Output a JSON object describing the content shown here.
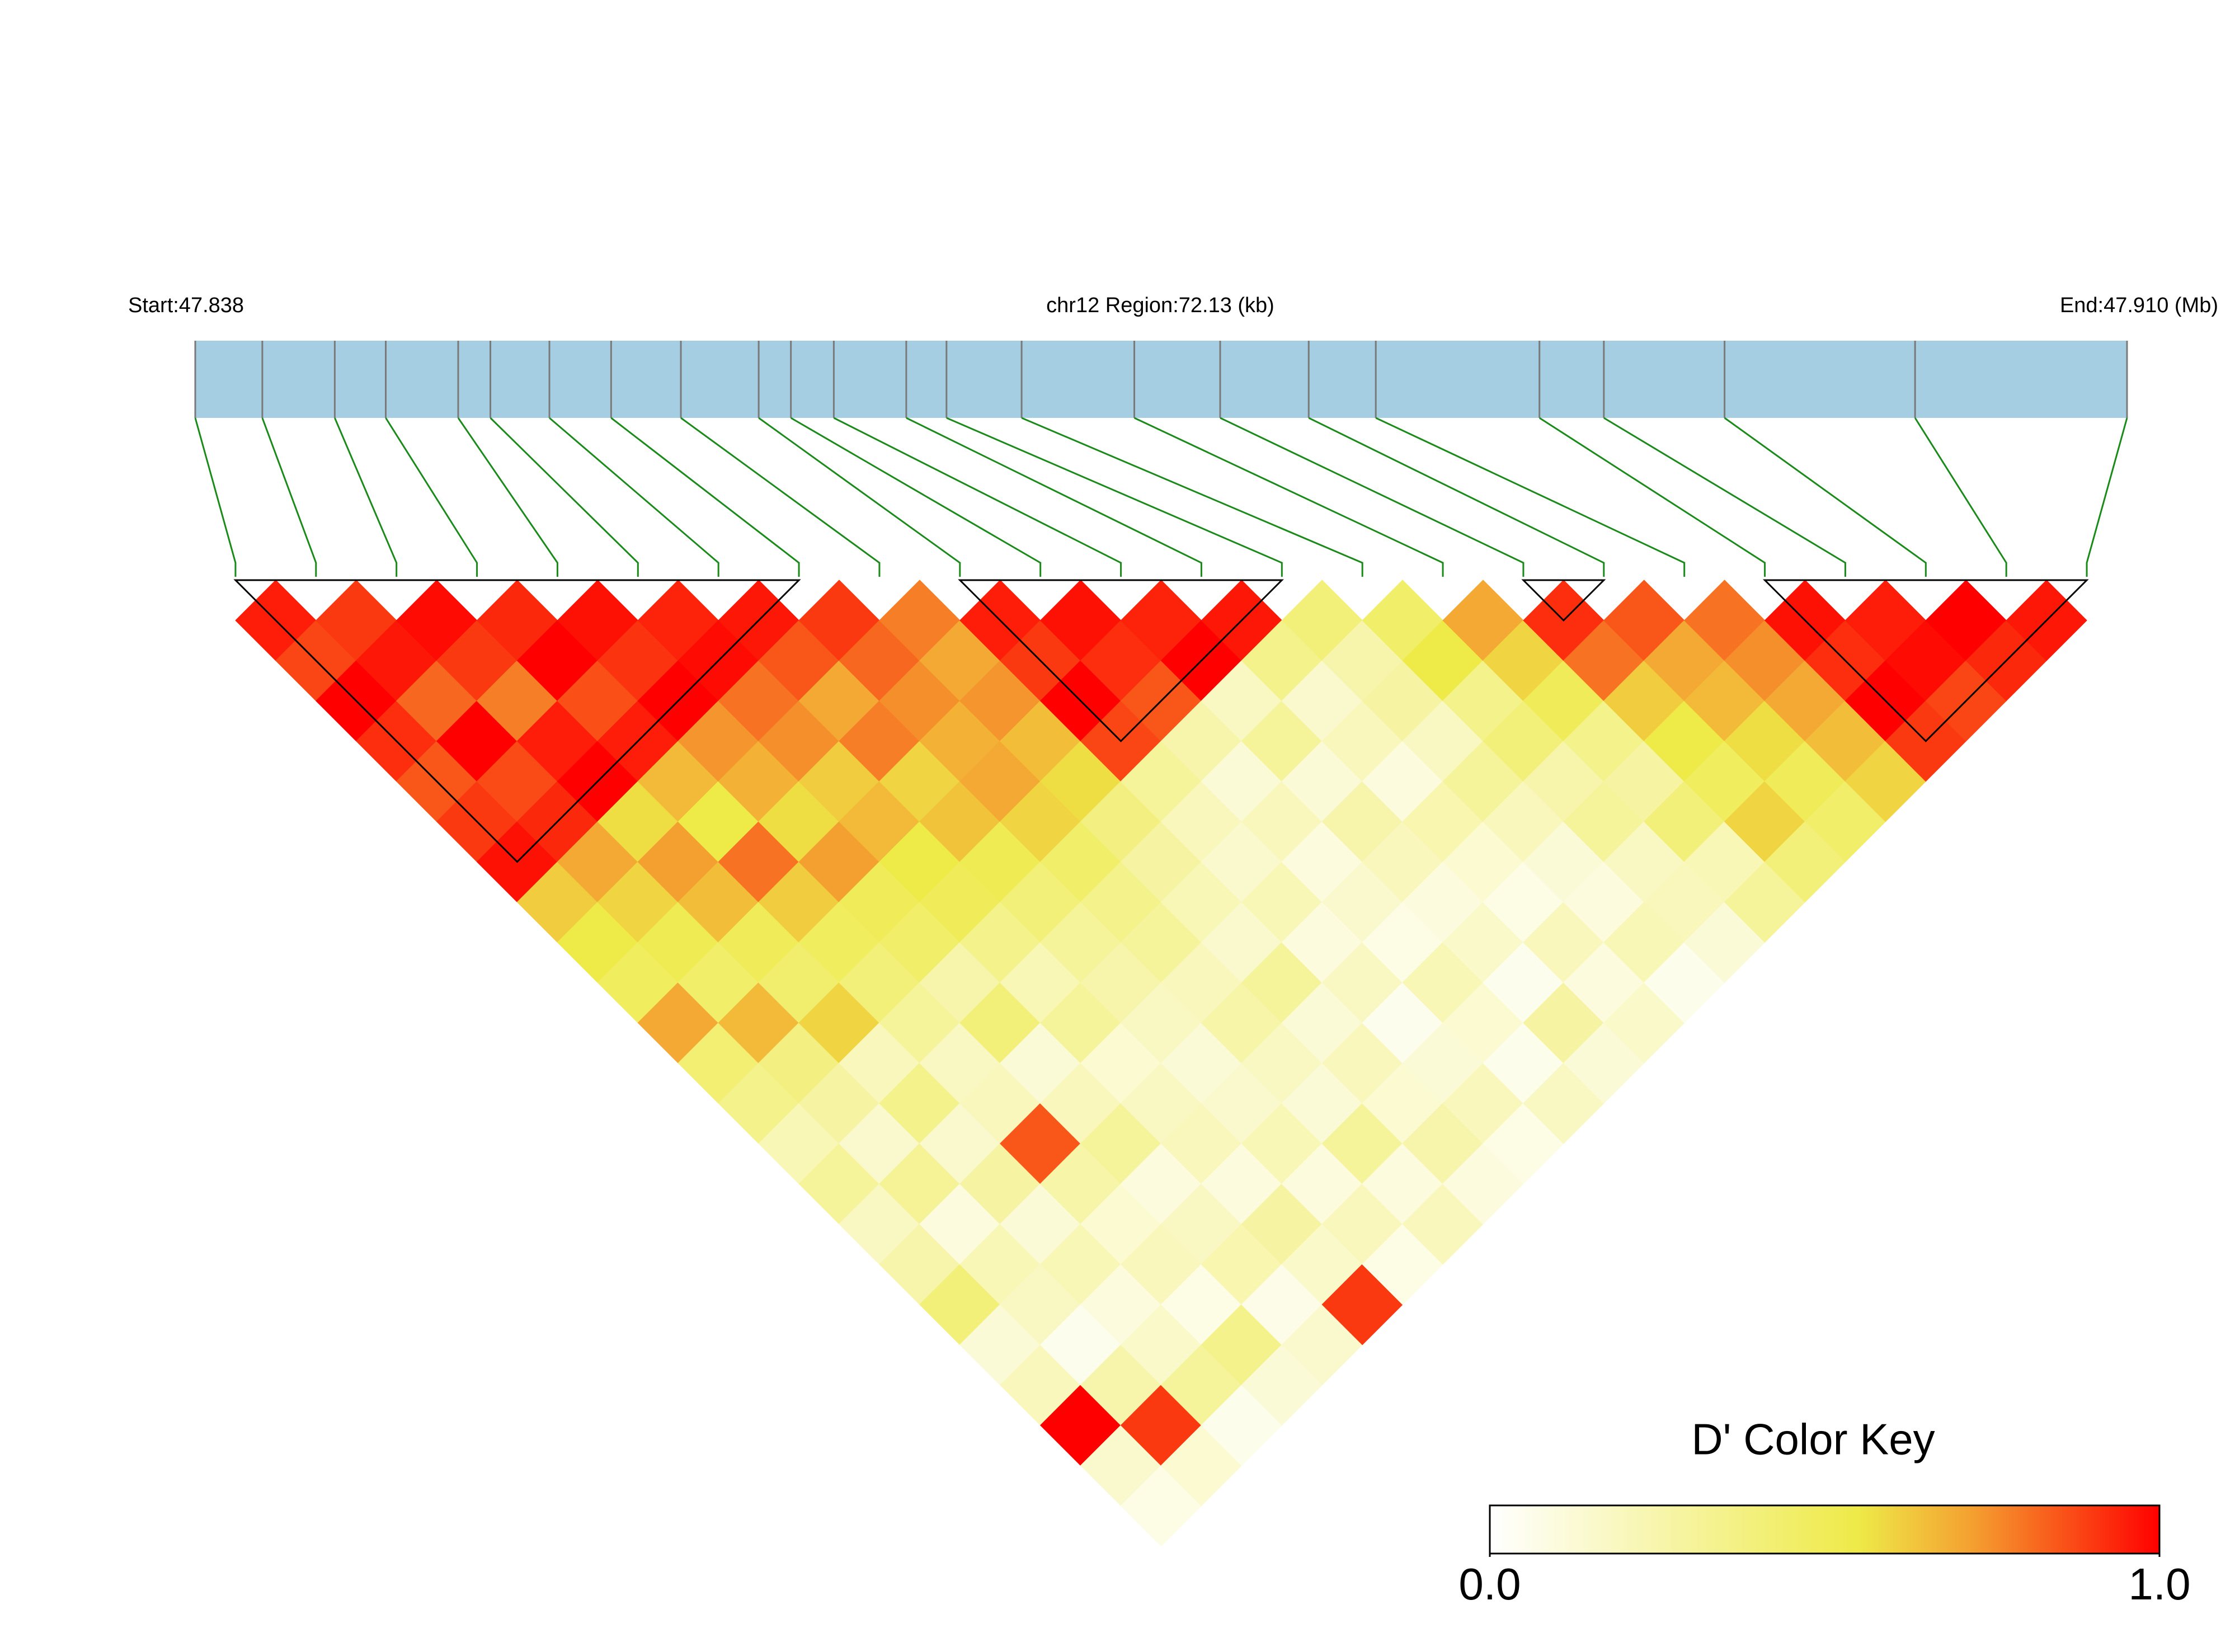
{
  "chart_data": {
    "type": "ld_heatmap",
    "start_label": "Start:47.838",
    "title": "chr12 Region:72.13 (kb)",
    "end_label": "End:47.910 (Mb)",
    "xlim": [
      47.838,
      47.91
    ],
    "positions": [
      47.838,
      47.8405,
      47.8432,
      47.8451,
      47.8478,
      47.849,
      47.8512,
      47.8535,
      47.8561,
      47.859,
      47.8602,
      47.8618,
      47.8645,
      47.866,
      47.8688,
      47.873,
      47.8762,
      47.8795,
      47.882,
      47.8881,
      47.8905,
      47.895,
      47.9021,
      47.91
    ],
    "dprime": [
      [
        0.95,
        0.88,
        1,
        0.92,
        0.85,
        0.9,
        0.97,
        0.62,
        0.55,
        0.48,
        0.7,
        0.42,
        0.35,
        0.22,
        0.3,
        0.18,
        0.25,
        0.4,
        0.12,
        0.2,
        1,
        0.15,
        0.08
      ],
      [
        0.9,
        0.96,
        0.82,
        1,
        0.87,
        0.93,
        0.7,
        0.6,
        0.52,
        0.45,
        0.66,
        0.38,
        0.28,
        0.15,
        0.32,
        0.1,
        0.22,
        0.18,
        0.05,
        0.25,
        0.9,
        0.14
      ],
      [
        0.98,
        0.9,
        0.78,
        0.95,
        1,
        0.58,
        0.72,
        0.65,
        0.5,
        0.44,
        0.6,
        0.2,
        0.35,
        0.15,
        0.28,
        0.12,
        0.22,
        0.1,
        0.16,
        0.3,
        0.06
      ],
      [
        0.93,
        1,
        0.86,
        0.95,
        0.66,
        0.55,
        0.8,
        0.62,
        0.48,
        0.4,
        0.3,
        0.18,
        0.2,
        0.85,
        0.26,
        0.14,
        0.2,
        0.08,
        0.35,
        0.12
      ],
      [
        0.97,
        0.91,
        1,
        0.74,
        0.68,
        0.58,
        0.72,
        0.5,
        0.45,
        0.25,
        0.4,
        0.12,
        0.2,
        0.3,
        0.1,
        0.18,
        0.24,
        0.07,
        0.15
      ],
      [
        0.94,
        0.98,
        0.8,
        0.75,
        0.62,
        0.66,
        0.55,
        0.5,
        0.35,
        0.22,
        0.3,
        0.14,
        0.18,
        0.2,
        0.1,
        0.28,
        0.16,
        0.9
      ],
      [
        0.96,
        0.85,
        0.7,
        0.78,
        0.6,
        0.64,
        0.52,
        0.4,
        0.3,
        0.25,
        0.18,
        0.12,
        0.15,
        0.22,
        0.1,
        0.2,
        0.08
      ],
      [
        0.9,
        0.82,
        0.75,
        0.68,
        0.7,
        0.6,
        0.45,
        0.35,
        0.3,
        0.2,
        0.26,
        0.18,
        0.12,
        0.3,
        0.1,
        0.2
      ],
      [
        0.78,
        0.7,
        0.74,
        0.65,
        0.58,
        0.38,
        0.28,
        0.22,
        0.15,
        0.3,
        0.12,
        0.2,
        0.14,
        0.25,
        0.1
      ],
      [
        0.95,
        0.9,
        1,
        0.88,
        0.3,
        0.2,
        0.15,
        0.22,
        0.1,
        0.18,
        0.05,
        0.12,
        0.2,
        0.08
      ],
      [
        0.97,
        0.92,
        0.85,
        0.25,
        0.12,
        0.2,
        0.1,
        0.15,
        0.08,
        0.22,
        0.14,
        0.06,
        0.18
      ],
      [
        0.94,
        1,
        0.18,
        0.3,
        0.12,
        0.25,
        0.2,
        0.1,
        0.16,
        0.05,
        0.28,
        0.12
      ],
      [
        0.96,
        0.35,
        0.15,
        0.2,
        0.1,
        0.24,
        0.14,
        0.08,
        0.2,
        0.1,
        0.16
      ],
      [
        0.4,
        0.25,
        0.28,
        0.18,
        0.3,
        0.2,
        0.12,
        0.1,
        0.22,
        0.06
      ],
      [
        0.45,
        0.55,
        0.35,
        0.4,
        0.25,
        0.3,
        0.18,
        0.2,
        0.12
      ],
      [
        0.7,
        0.6,
        0.5,
        0.35,
        0.28,
        0.4,
        0.22,
        0.3
      ],
      [
        0.92,
        0.8,
        0.62,
        0.55,
        0.48,
        0.6,
        0.4
      ],
      [
        0.85,
        0.7,
        0.66,
        0.58,
        0.5,
        0.45
      ],
      [
        0.8,
        0.75,
        0.7,
        0.65,
        0.6
      ],
      [
        0.97,
        0.92,
        1,
        0.9
      ],
      [
        0.95,
        0.98,
        0.88
      ],
      [
        1,
        0.93
      ],
      [
        0.96
      ]
    ],
    "blocks": [
      [
        0,
        7
      ],
      [
        9,
        13
      ],
      [
        16,
        17
      ],
      [
        19,
        23
      ]
    ],
    "bar_color": "#a6cee3",
    "snp_line_color": "#7a7a7a",
    "connector_color": "#1a8a1a",
    "key_title": "D' Color Key",
    "key_lim": [
      0,
      1
    ],
    "key_ticks": [
      {
        "value": 0,
        "label": "0.0"
      },
      {
        "value": 1,
        "label": "1.0"
      }
    ]
  }
}
